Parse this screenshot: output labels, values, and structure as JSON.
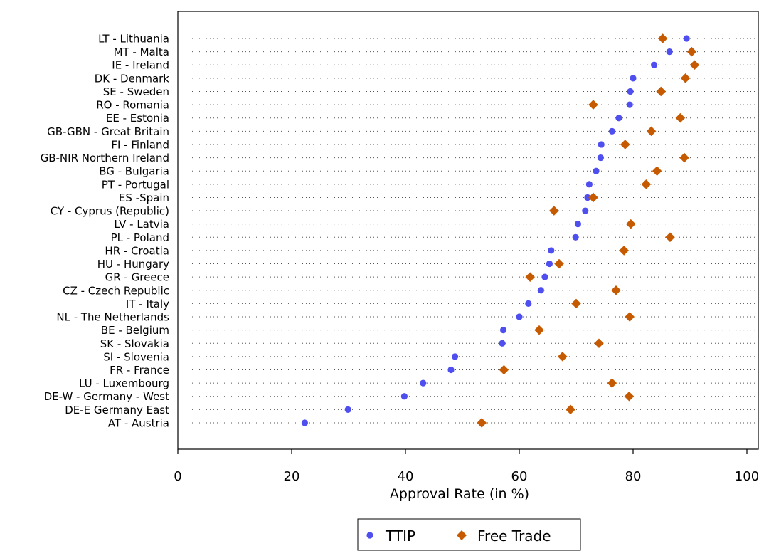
{
  "chart_data": {
    "type": "scatter",
    "title": "",
    "xlabel": "Approval Rate (in %)",
    "ylabel": "",
    "xlim": [
      0,
      102
    ],
    "xticks": [
      0,
      20,
      40,
      60,
      80,
      100
    ],
    "grid": "dotted horizontal guides per country",
    "legend_position": "bottom-center",
    "categories": [
      "LT - Lithuania",
      "MT - Malta",
      "IE - Ireland",
      "DK - Denmark",
      "SE - Sweden",
      "RO - Romania",
      "EE - Estonia",
      "GB-GBN - Great Britain",
      "FI - Finland",
      "GB-NIR Northern Ireland",
      "BG - Bulgaria",
      "PT - Portugal",
      "ES -Spain",
      "CY - Cyprus (Republic)",
      "LV - Latvia",
      "PL - Poland",
      "HR - Croatia",
      "HU - Hungary",
      "GR - Greece",
      "CZ - Czech Republic",
      "IT - Italy",
      "NL - The Netherlands",
      "BE - Belgium",
      "SK - Slovakia",
      "SI - Slovenia",
      "FR - France",
      "LU - Luxembourg",
      "DE-W - Germany - West",
      "DE-E Germany East",
      "AT - Austria"
    ],
    "series": [
      {
        "name": "TTIP",
        "marker": "circle",
        "color": "#4F4FF0",
        "values": [
          89.4,
          86.4,
          83.7,
          80.0,
          79.5,
          79.4,
          77.5,
          76.3,
          74.4,
          74.3,
          73.5,
          72.3,
          72.0,
          71.6,
          70.3,
          69.9,
          65.6,
          65.3,
          64.5,
          63.8,
          61.6,
          60.0,
          57.2,
          57.0,
          48.7,
          48.0,
          43.1,
          39.8,
          29.9,
          22.3
        ]
      },
      {
        "name": "Free Trade",
        "marker": "diamond",
        "color": "#C65A00",
        "values": [
          85.2,
          90.3,
          90.8,
          89.2,
          84.9,
          73.0,
          88.3,
          83.2,
          78.6,
          89.0,
          84.2,
          82.3,
          73.0,
          66.1,
          79.6,
          86.5,
          78.4,
          67.0,
          61.9,
          77.0,
          70.0,
          79.4,
          63.5,
          74.0,
          67.6,
          57.3,
          76.3,
          79.3,
          69.0,
          53.4
        ]
      }
    ]
  }
}
